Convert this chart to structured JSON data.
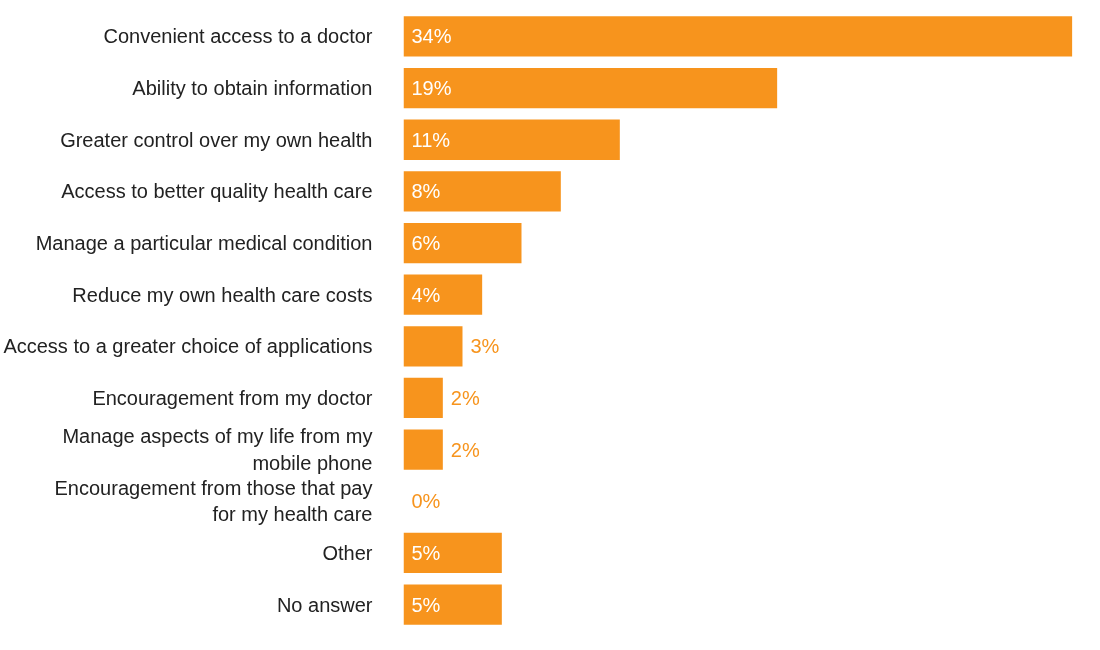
{
  "chart_data": {
    "type": "bar",
    "orientation": "horizontal",
    "categories": [
      "Convenient access to a doctor",
      "Ability to obtain information",
      "Greater control over my own health",
      "Access to better quality health care",
      "Manage a particular medical condition",
      "Reduce my own health care costs",
      "Access to a greater choice of applications",
      "Encouragement from my doctor",
      "Manage aspects of my life from my\nmobile phone",
      "Encouragement from those that pay\nfor my health care",
      "Other",
      "No answer"
    ],
    "values": [
      34,
      19,
      11,
      8,
      6,
      4,
      3,
      2,
      2,
      0,
      5,
      5
    ],
    "value_labels": [
      "34%",
      "19%",
      "11%",
      "8%",
      "6%",
      "4%",
      "3%",
      "2%",
      "2%",
      "0%",
      "5%",
      "5%"
    ],
    "color": "#f7941d",
    "grid": false
  }
}
